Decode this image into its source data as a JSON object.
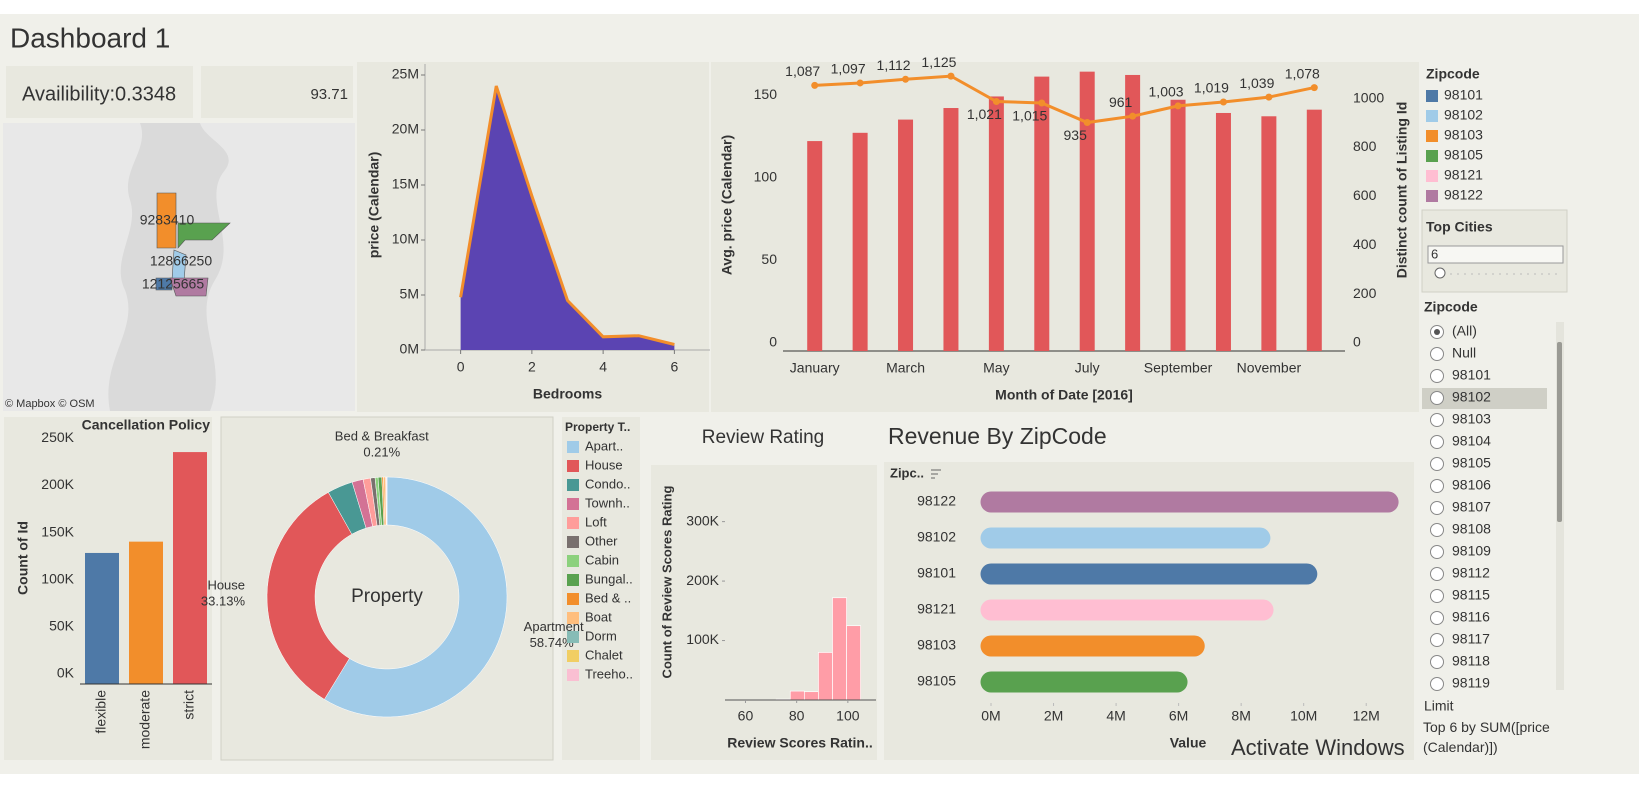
{
  "title": "Dashboard 1",
  "kpis": [
    "Availibility:0.3348",
    "93.71"
  ],
  "map": {
    "labels": [
      "9283410",
      "12866250",
      "12125665"
    ],
    "attribution": "© Mapbox © OSM"
  },
  "legend": {
    "title": "Zipcode",
    "items": [
      {
        "name": "98101",
        "color": "#4e79a7"
      },
      {
        "name": "98102",
        "color": "#a0cbe8"
      },
      {
        "name": "98103",
        "color": "#f28e2b"
      },
      {
        "name": "98105",
        "color": "#59a14f"
      },
      {
        "name": "98121",
        "color": "#ffbed2"
      },
      {
        "name": "98122",
        "color": "#b07aa1"
      }
    ]
  },
  "top_cities": {
    "title": "Top Cities",
    "value": 6
  },
  "zipcode_filter": {
    "title": "Zipcode",
    "selected": "(All)",
    "options": [
      "(All)",
      "Null",
      "98101",
      "98102",
      "98103",
      "98104",
      "98105",
      "98106",
      "98107",
      "98108",
      "98109",
      "98112",
      "98115",
      "98116",
      "98117",
      "98118",
      "98119"
    ],
    "limit_title": "Limit",
    "limit_text": "Top 6 by SUM([price (Calendar)])"
  },
  "watermark": "Activate Windows",
  "chart_data": [
    {
      "type": "area",
      "x_title": "Bedrooms",
      "y_title": "price (Calendar)",
      "x": [
        0,
        1,
        2,
        3,
        4,
        5,
        6
      ],
      "values": [
        4800000,
        24000000,
        14000000,
        4500000,
        1200000,
        1300000,
        500000
      ],
      "color": "#5b44b2",
      "line_color": "#f28e2b",
      "xlim": [
        -1,
        7
      ],
      "xticks": [
        0,
        2,
        4,
        6
      ],
      "ylim": [
        0,
        26000000
      ],
      "yticks": [
        {
          "value": 0,
          "label": "0M"
        },
        {
          "value": 5000000,
          "label": "5M"
        },
        {
          "value": 10000000,
          "label": "10M"
        },
        {
          "value": 15000000,
          "label": "15M"
        },
        {
          "value": 20000000,
          "label": "20M"
        },
        {
          "value": 25000000,
          "label": "25M"
        }
      ]
    },
    {
      "type": "bar",
      "x_title": "Month of Date [2016]",
      "y_title": "Avg. price (Calendar)",
      "y2_title": "Distinct count of Listing Id",
      "categories": [
        "January",
        null,
        "March",
        null,
        "May",
        null,
        "July",
        null,
        "September",
        null,
        "November",
        null
      ],
      "series": [
        {
          "type": "bar",
          "color": "#e15759",
          "values": [
            127,
            132,
            140,
            147,
            154,
            166,
            169,
            167,
            152,
            144,
            142,
            146
          ]
        },
        {
          "type": "line",
          "axis": "y2",
          "color": "#f28e2b",
          "values": [
            1087,
            1097,
            1112,
            1125,
            1021,
            1015,
            935,
            961,
            1003,
            1019,
            1039,
            1078
          ],
          "value_labels": [
            "1,087",
            "1,097",
            "1,112",
            "1,125",
            "1,021",
            "1,015",
            "935",
            "961",
            "1,003",
            "1,019",
            "1,039",
            "1,078"
          ]
        }
      ],
      "ylim": [
        0,
        170
      ],
      "yticks": [
        0,
        50,
        100,
        150
      ],
      "y2lim": [
        0,
        1150
      ],
      "y2ticks": [
        0,
        200,
        400,
        600,
        800,
        1000
      ]
    },
    {
      "type": "bar",
      "title": "Cancellation Policy",
      "y_title": "Count of Id",
      "categories": [
        "flexible",
        "moderate",
        "strict"
      ],
      "values": [
        139000,
        151000,
        246000
      ],
      "colors": [
        "#4e79a7",
        "#f28e2b",
        "#e15759"
      ],
      "ylim": [
        0,
        262000
      ],
      "yticks": [
        {
          "value": 0,
          "label": "0K"
        },
        {
          "value": 50000,
          "label": "50K"
        },
        {
          "value": 100000,
          "label": "100K"
        },
        {
          "value": 150000,
          "label": "150K"
        },
        {
          "value": 200000,
          "label": "200K"
        },
        {
          "value": 250000,
          "label": "250K"
        }
      ]
    },
    {
      "type": "pie",
      "center_label": "Property",
      "legend_title": "Property T..",
      "categories": [
        "Apart..",
        "House",
        "Condo..",
        "Townh..",
        "Loft",
        "Other",
        "Cabin",
        "Bungal..",
        "Bed & ..",
        "Boat",
        "Dorm",
        "Chalet",
        "Treeho.."
      ],
      "values": [
        58.74,
        33.13,
        3.44,
        1.5,
        1.0,
        0.6,
        0.4,
        0.5,
        0.21,
        0.3,
        0.05,
        0.05,
        0.08
      ],
      "slice_labels": [
        "Apartment",
        "House",
        null,
        null,
        null,
        null,
        null,
        null,
        "Bed & Breakfast",
        null,
        null,
        null,
        null
      ],
      "value_labels": [
        "58.74%",
        "33.13%",
        null,
        null,
        null,
        null,
        null,
        null,
        "0.21%",
        null,
        null,
        null,
        null
      ],
      "colors": [
        "#a0cbe8",
        "#e15759",
        "#499894",
        "#d37295",
        "#ff9d9a",
        "#79706e",
        "#8cd17d",
        "#59a14f",
        "#f28e2b",
        "#ffbe7d",
        "#86bcb6",
        "#f1ce63",
        "#fabfd2"
      ]
    },
    {
      "type": "histogram",
      "title": "Review Rating",
      "x_title": "Review Scores Ratin..",
      "y_title": "Count of Review Scores Rating",
      "bins": [
        72,
        77.5,
        83,
        88.5,
        94,
        99.5,
        105
      ],
      "values": [
        1500,
        15000,
        14000,
        80000,
        172000,
        125000
      ],
      "color": "#ff9da7",
      "xlim": [
        52,
        111
      ],
      "xticks": [
        60,
        80,
        100
      ],
      "ylim": [
        0,
        370000
      ],
      "yticks": [
        {
          "value": 100000,
          "label": "100K"
        },
        {
          "value": 200000,
          "label": "200K"
        },
        {
          "value": 300000,
          "label": "300K"
        }
      ]
    },
    {
      "type": "hbar",
      "title": "Revenue By ZipCode",
      "y_title": "Zipc..",
      "x_title": "Value",
      "categories": [
        "98122",
        "98102",
        "98101",
        "98121",
        "98103",
        "98105"
      ],
      "values": [
        12700000,
        8600000,
        10100000,
        8700000,
        6500000,
        5950000
      ],
      "colors": [
        "#b07aa1",
        "#a0cbe8",
        "#4e79a7",
        "#ffbed2",
        "#f28e2b",
        "#59a14f"
      ],
      "xlim": [
        -320000,
        13400000
      ],
      "xticks": [
        {
          "value": 0,
          "label": "0M"
        },
        {
          "value": 2000000,
          "label": "2M"
        },
        {
          "value": 4000000,
          "label": "4M"
        },
        {
          "value": 6000000,
          "label": "6M"
        },
        {
          "value": 8000000,
          "label": "8M"
        },
        {
          "value": 10000000,
          "label": "10M"
        },
        {
          "value": 12000000,
          "label": "12M"
        }
      ]
    }
  ]
}
